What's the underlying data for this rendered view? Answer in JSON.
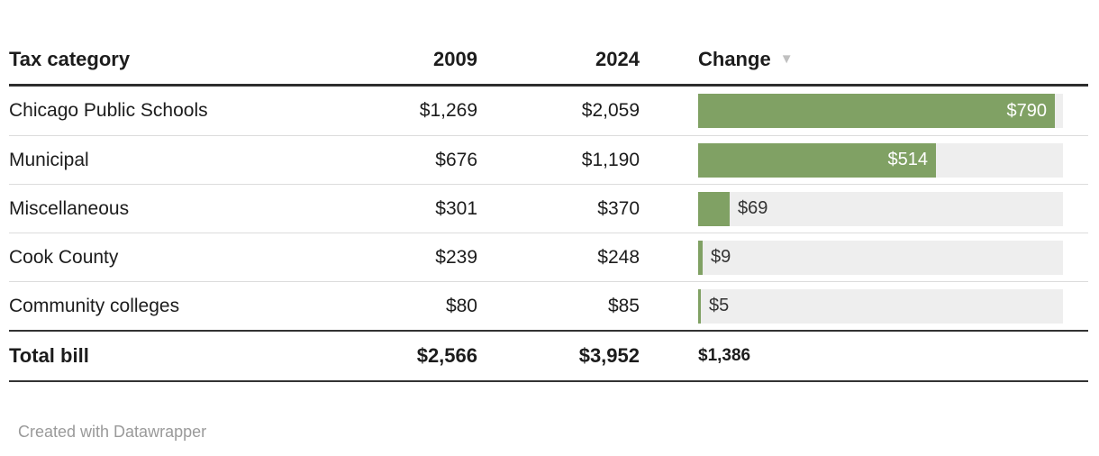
{
  "table": {
    "header": {
      "category": "Tax category",
      "col2009": "2009",
      "col2024": "2024",
      "change": "Change",
      "sort_icon": "▼"
    },
    "rows": [
      {
        "category": "Chicago Public Schools",
        "y2009": "$1,269",
        "y2024": "$2,059",
        "change": "$790",
        "change_value": 790
      },
      {
        "category": "Municipal",
        "y2009": "$676",
        "y2024": "$1,190",
        "change": "$514",
        "change_value": 514
      },
      {
        "category": "Miscellaneous",
        "y2009": "$301",
        "y2024": "$370",
        "change": "$69",
        "change_value": 69
      },
      {
        "category": "Cook County",
        "y2009": "$239",
        "y2024": "$248",
        "change": "$9",
        "change_value": 9
      },
      {
        "category": "Community colleges",
        "y2009": "$80",
        "y2024": "$85",
        "change": "$5",
        "change_value": 5
      }
    ],
    "total": {
      "label": "Total bill",
      "y2009": "$2,566",
      "y2024": "$3,952",
      "change": "$1,386"
    }
  },
  "footer": {
    "credit": "Created with Datawrapper"
  },
  "colors": {
    "bar_fill": "#80a164",
    "bar_track": "#eeeeee",
    "header_rule": "#2d2d2d",
    "total_rule": "#333333",
    "row_divider": "#dcdcdc",
    "text_primary": "#1c1c1c",
    "bar_label_inside": "#ffffff",
    "bar_label_outside": "#333333",
    "sort_arrow": "#c0c0c0",
    "footer_text": "#9a9a9a"
  },
  "chart_data": {
    "type": "table",
    "title": "",
    "columns": [
      "Tax category",
      "2009",
      "2024",
      "Change"
    ],
    "rows": [
      {
        "category": "Chicago Public Schools",
        "2009": 1269,
        "2024": 2059,
        "change": 790
      },
      {
        "category": "Municipal",
        "2009": 676,
        "2024": 1190,
        "change": 514
      },
      {
        "category": "Miscellaneous",
        "2009": 301,
        "2024": 370,
        "change": 69
      },
      {
        "category": "Cook County",
        "2009": 239,
        "2024": 248,
        "change": 9
      },
      {
        "category": "Community colleges",
        "2009": 80,
        "2024": 85,
        "change": 5
      }
    ],
    "total": {
      "category": "Total bill",
      "2009": 2566,
      "2024": 3952,
      "change": 1386
    },
    "bar_column": {
      "column": "Change",
      "min": 0,
      "max": 790,
      "bar_color": "#80a164",
      "values_prefix": "$"
    },
    "sort": {
      "column": "Change",
      "direction": "desc"
    },
    "credit": "Created with Datawrapper"
  }
}
